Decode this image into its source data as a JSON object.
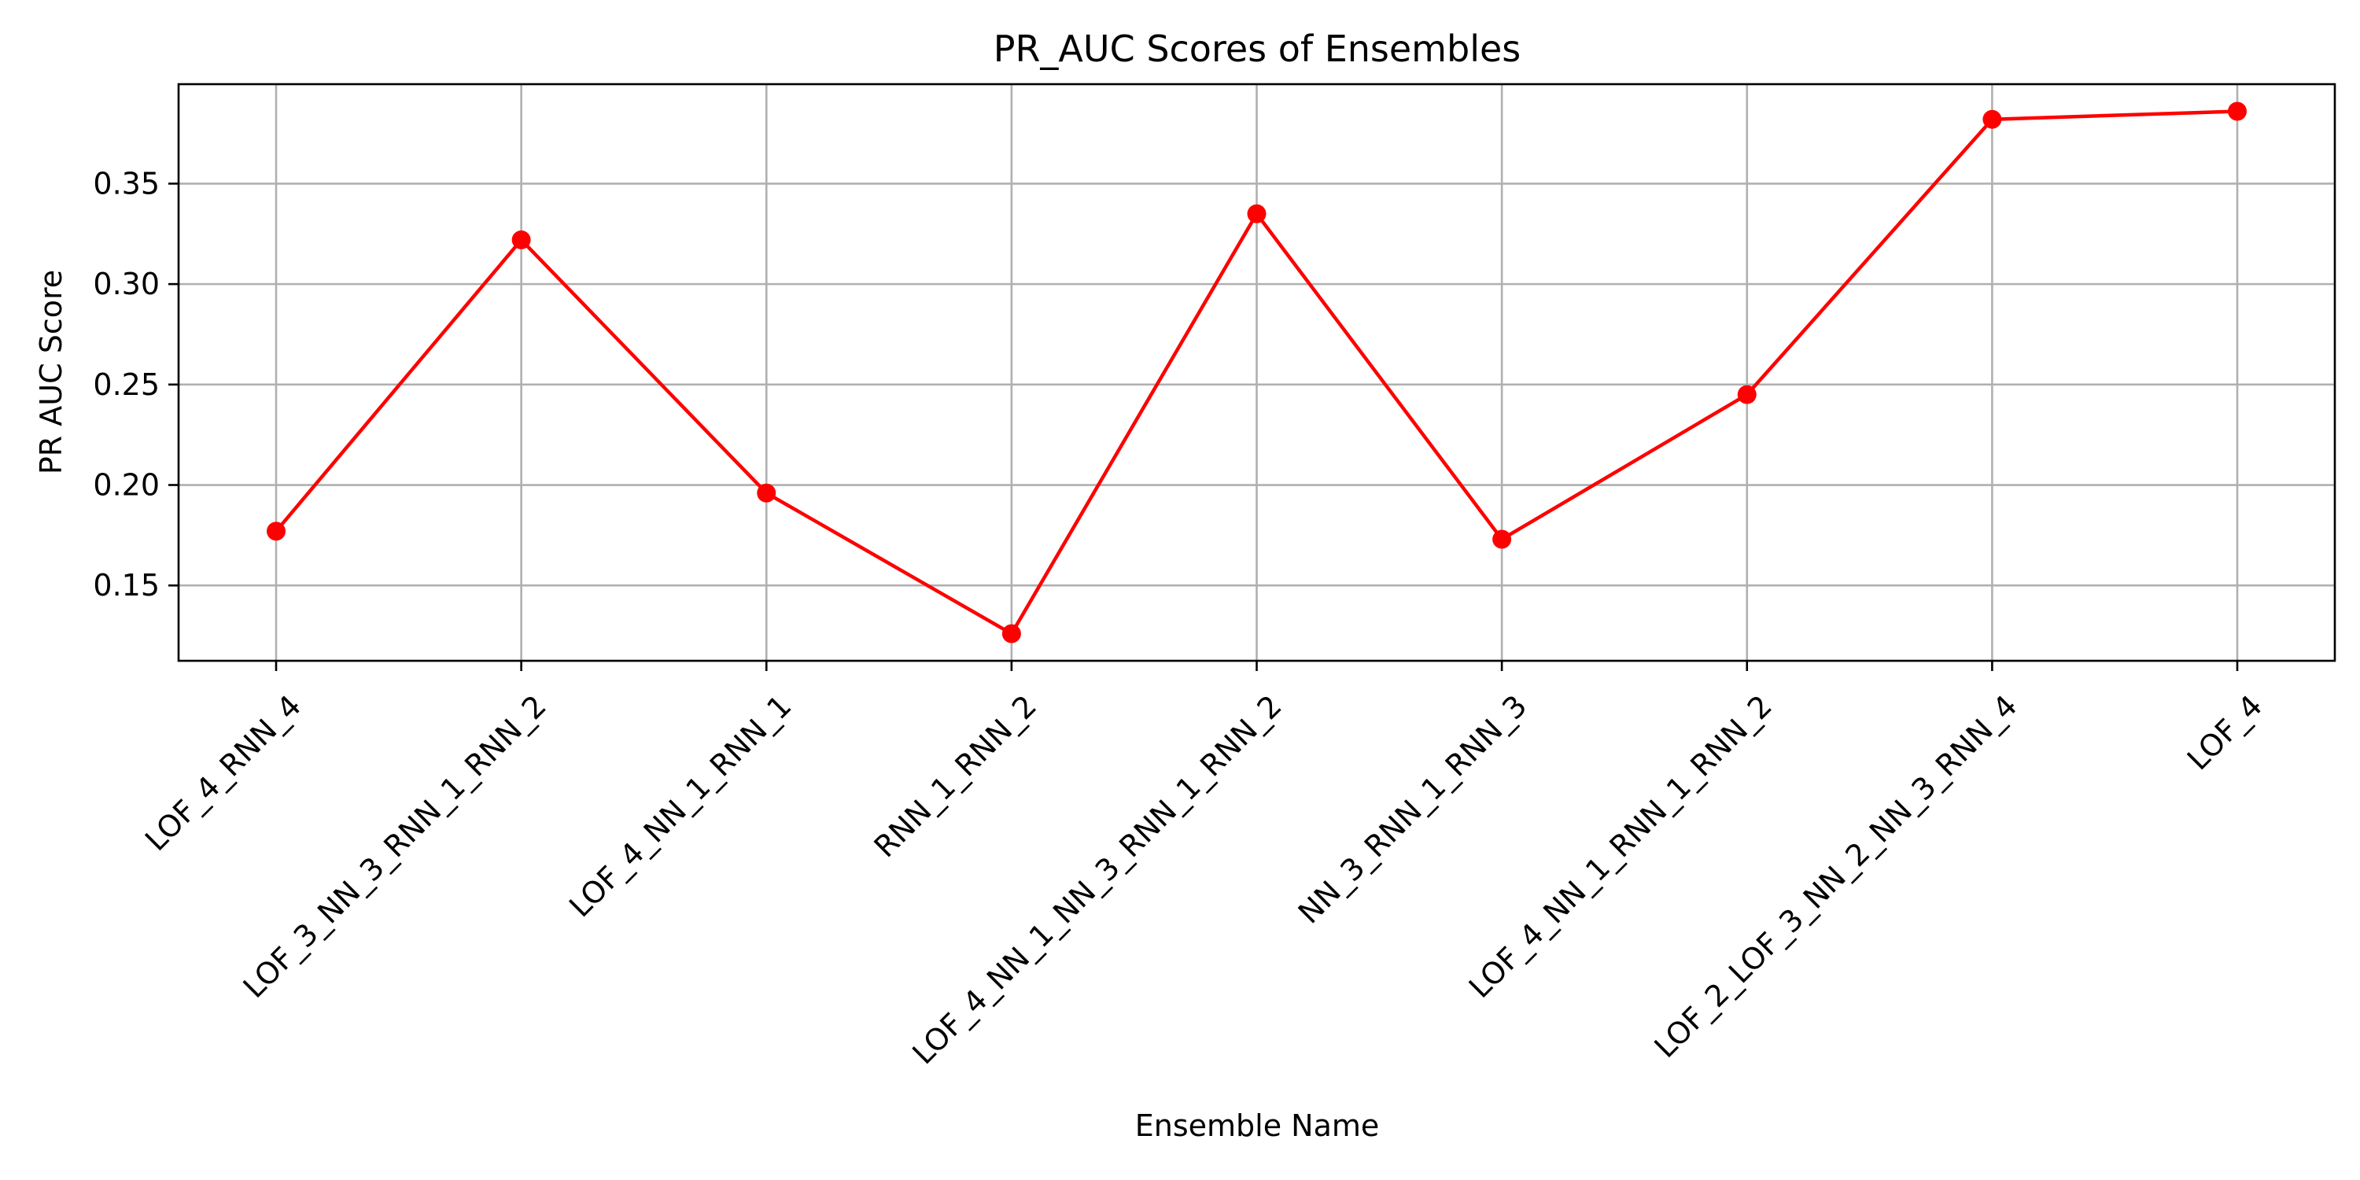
{
  "chart_data": {
    "type": "line",
    "title": "PR_AUC Scores of Ensembles",
    "xlabel": "Ensemble Name",
    "ylabel": "PR AUC Score",
    "categories": [
      "LOF_4_RNN_4",
      "LOF_3_NN_3_RNN_1_RNN_2",
      "LOF_4_NN_1_RNN_1",
      "RNN_1_RNN_2",
      "LOF_4_NN_1_NN_3_RNN_1_RNN_2",
      "NN_3_RNN_1_RNN_3",
      "LOF_4_NN_1_RNN_1_RNN_2",
      "LOF_2_LOF_3_NN_2_NN_3_RNN_4",
      "LOF_4"
    ],
    "series": [
      {
        "values": [
          0.177,
          0.322,
          0.196,
          0.126,
          0.335,
          0.173,
          0.245,
          0.382,
          0.386
        ],
        "color": "#ff0000",
        "marker": "circle"
      }
    ],
    "yticks": [
      "0.15",
      "0.20",
      "0.25",
      "0.30",
      "0.35"
    ],
    "ylim": [
      0.1125,
      0.3995
    ],
    "grid": true,
    "legend": "none"
  }
}
